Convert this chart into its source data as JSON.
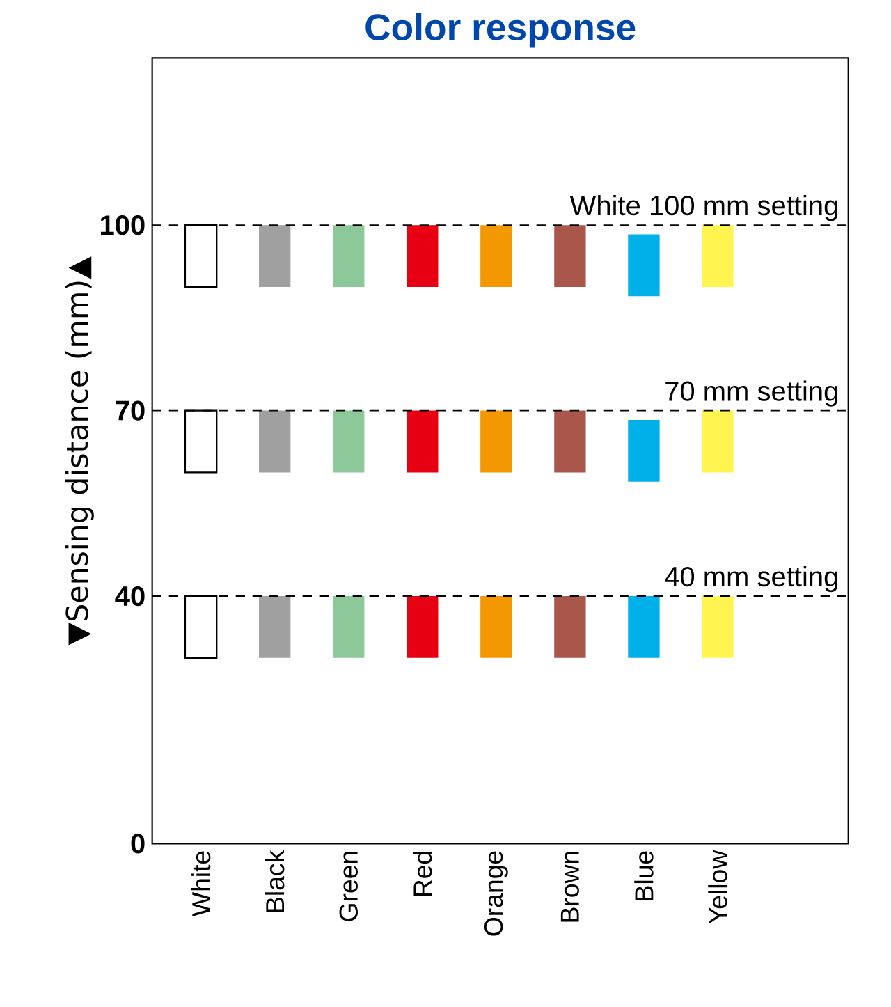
{
  "chart_data": {
    "type": "bar",
    "title": "Color response",
    "ylabel": "▼Sensing distance (mm)▲",
    "categories": [
      "White",
      "Black",
      "Green",
      "Red",
      "Orange",
      "Brown",
      "Blue",
      "Yellow"
    ],
    "series": [
      {
        "colors": [
          "#ffffff",
          "#a0a0a0",
          "#8dc89a",
          "#e60012",
          "#f39800",
          "#a9574a",
          "#00b1e9",
          "#fff450"
        ],
        "base": [
          90,
          90,
          90,
          90,
          90,
          90,
          88.5,
          90
        ],
        "values": [
          10,
          10,
          10,
          10,
          10,
          10,
          10,
          10
        ]
      },
      {
        "colors": [
          "#ffffff",
          "#a0a0a0",
          "#8dc89a",
          "#e60012",
          "#f39800",
          "#a9574a",
          "#00b1e9",
          "#fff450"
        ],
        "base": [
          60,
          60,
          60,
          60,
          60,
          60,
          58.5,
          60
        ],
        "values": [
          10,
          10,
          10,
          10,
          10,
          10,
          10,
          10
        ]
      },
      {
        "colors": [
          "#ffffff",
          "#a0a0a0",
          "#8dc89a",
          "#e60012",
          "#f39800",
          "#a9574a",
          "#00b1e9",
          "#fff450"
        ],
        "base": [
          30,
          30,
          30,
          30,
          30,
          30,
          30,
          30
        ],
        "values": [
          10,
          10,
          10,
          10,
          10,
          10,
          10,
          10
        ]
      }
    ],
    "ylim": [
      0,
      127
    ],
    "yticks": [
      0,
      40,
      70,
      100
    ],
    "ref_lines": [
      {
        "axis": "y",
        "value": 100,
        "label": "White 100 mm setting",
        "line_style": "dashed"
      },
      {
        "axis": "y",
        "value": 70,
        "label": "70 mm setting",
        "line_style": "dashed"
      },
      {
        "axis": "y",
        "value": 40,
        "label": "40 mm setting",
        "line_style": "dashed"
      }
    ],
    "grid": false
  }
}
